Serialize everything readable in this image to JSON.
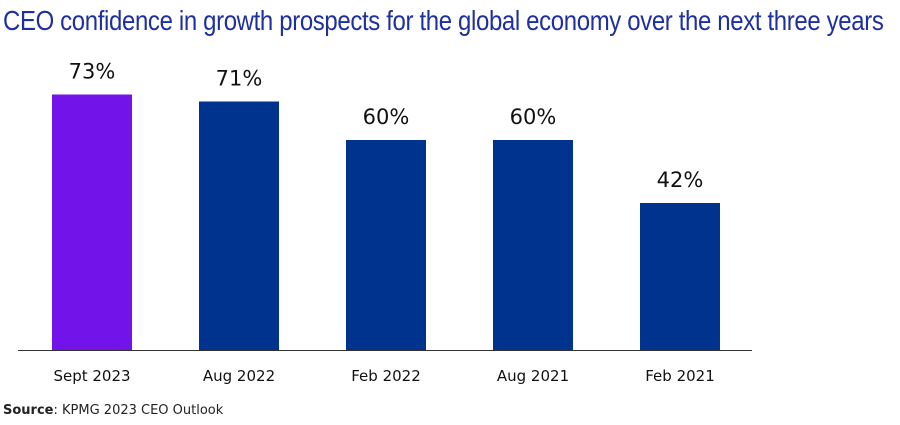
{
  "chart_data": {
    "type": "bar",
    "title": "CEO confidence in growth prospects for the global economy over the next  three years",
    "categories": [
      "Sept 2023",
      "Aug 2022",
      "Feb 2022",
      "Aug 2021",
      "Feb 2021"
    ],
    "values": [
      73,
      71,
      60,
      60,
      42
    ],
    "value_labels": [
      "73%",
      "71%",
      "60%",
      "60%",
      "42%"
    ],
    "unit": "%",
    "xlabel": "",
    "ylabel": "",
    "ylim": [
      0,
      100
    ],
    "grid": false,
    "legend": "none",
    "highlight_index": 0,
    "colors": {
      "highlight": "#7213ea",
      "default": "#00338d",
      "title": "#1e2fa0",
      "axis": "#333333",
      "text": "#111111"
    }
  },
  "source": {
    "label": "Source",
    "separator": ":",
    "text": " KPMG 2023 CEO Outlook"
  }
}
